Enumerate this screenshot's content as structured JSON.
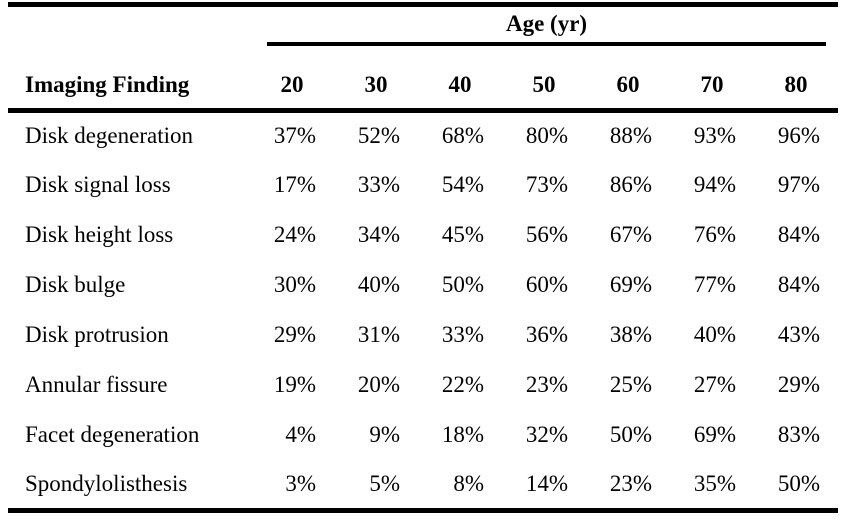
{
  "table": {
    "group_header": "Age (yr)",
    "row_header": "Imaging Finding",
    "age_columns": [
      "20",
      "30",
      "40",
      "50",
      "60",
      "70",
      "80"
    ],
    "rows": [
      {
        "finding": "Disk degeneration",
        "values": [
          "37%",
          "52%",
          "68%",
          "80%",
          "88%",
          "93%",
          "96%"
        ]
      },
      {
        "finding": "Disk signal loss",
        "values": [
          "17%",
          "33%",
          "54%",
          "73%",
          "86%",
          "94%",
          "97%"
        ]
      },
      {
        "finding": "Disk height loss",
        "values": [
          "24%",
          "34%",
          "45%",
          "56%",
          "67%",
          "76%",
          "84%"
        ]
      },
      {
        "finding": "Disk bulge",
        "values": [
          "30%",
          "40%",
          "50%",
          "60%",
          "69%",
          "77%",
          "84%"
        ]
      },
      {
        "finding": "Disk protrusion",
        "values": [
          "29%",
          "31%",
          "33%",
          "36%",
          "38%",
          "40%",
          "43%"
        ]
      },
      {
        "finding": "Annular fissure",
        "values": [
          "19%",
          "20%",
          "22%",
          "23%",
          "25%",
          "27%",
          "29%"
        ]
      },
      {
        "finding": "Facet degeneration",
        "values": [
          "4%",
          "9%",
          "18%",
          "32%",
          "50%",
          "69%",
          "83%"
        ]
      },
      {
        "finding": "Spondylolisthesis",
        "values": [
          "3%",
          "5%",
          "8%",
          "14%",
          "23%",
          "35%",
          "50%"
        ]
      }
    ],
    "colors": {
      "text": "#000000",
      "border": "#000000",
      "background": "#ffffff"
    }
  }
}
